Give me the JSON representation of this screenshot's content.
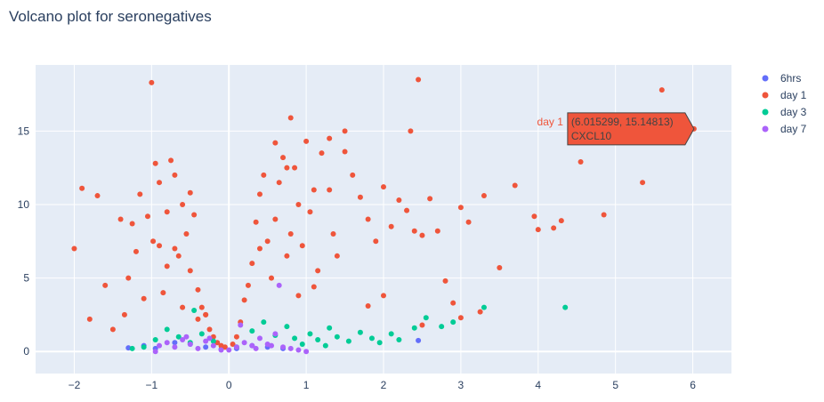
{
  "colors": {
    "plot_bg": "#E5ECF6",
    "grid": "#FFFFFF",
    "text": "#2a3f5f",
    "6hrs": "#636EFA",
    "day 1": "#EF553B",
    "day 3": "#00CC96",
    "day 7": "#AB63FA"
  },
  "chart_data": {
    "type": "scatter",
    "title": "Volcano plot for seronegatives",
    "xlabel": "",
    "ylabel": "",
    "xlim": [
      -2.5,
      6.5
    ],
    "ylim": [
      -1.5,
      19.5
    ],
    "xticks": [
      -2,
      -1,
      0,
      1,
      2,
      3,
      4,
      5,
      6
    ],
    "yticks": [
      0,
      5,
      10,
      15
    ],
    "grid": true,
    "legend_position": "top-right",
    "series": [
      {
        "name": "6hrs",
        "x": [
          -1.3,
          -1.1,
          -0.95,
          -0.7,
          -0.5,
          -0.3,
          -0.1,
          0.1,
          0.3,
          0.5,
          0.7,
          2.45
        ],
        "y": [
          0.25,
          0.4,
          0.2,
          0.6,
          0.5,
          0.3,
          0.15,
          0.2,
          0.4,
          0.3,
          0.2,
          0.75
        ]
      },
      {
        "name": "day 1",
        "x": [
          -2.0,
          -1.9,
          -1.8,
          -1.7,
          -1.6,
          -1.5,
          -1.4,
          -1.35,
          -1.3,
          -1.25,
          -1.2,
          -1.15,
          -1.1,
          -1.05,
          -1.0,
          -0.98,
          -0.95,
          -0.9,
          -0.85,
          -0.8,
          -0.75,
          -0.7,
          -0.65,
          -0.6,
          -0.55,
          -0.5,
          -0.45,
          -0.4,
          -0.35,
          -0.3,
          -0.25,
          -0.2,
          -0.15,
          -0.1,
          -0.05,
          0.05,
          0.1,
          0.15,
          0.2,
          0.25,
          0.3,
          0.35,
          0.4,
          0.45,
          0.5,
          0.55,
          0.6,
          0.65,
          0.7,
          0.75,
          0.8,
          0.85,
          0.9,
          0.95,
          1.0,
          1.05,
          1.1,
          1.15,
          1.2,
          1.3,
          1.35,
          1.4,
          1.5,
          1.6,
          1.7,
          1.8,
          1.9,
          2.0,
          2.1,
          2.2,
          2.3,
          2.4,
          2.45,
          2.5,
          2.6,
          2.7,
          2.8,
          2.9,
          3.0,
          3.1,
          3.3,
          3.5,
          3.7,
          3.95,
          4.0,
          4.2,
          4.3,
          4.55,
          4.85,
          5.35,
          5.6,
          6.015299,
          0.8,
          1.5,
          2.35,
          0.75,
          1.3,
          0.6,
          -0.6,
          -0.4,
          -0.8,
          -0.9,
          -0.5,
          -0.7,
          -0.3,
          0.4,
          0.9,
          1.1,
          1.8,
          2.0,
          2.5,
          3.25,
          3.0
        ],
        "y": [
          7.0,
          11.1,
          2.2,
          10.6,
          4.5,
          1.5,
          9.0,
          2.5,
          5.0,
          8.7,
          6.8,
          10.7,
          3.6,
          9.2,
          18.3,
          7.5,
          12.8,
          11.5,
          4.0,
          9.5,
          13.0,
          7.0,
          6.5,
          10.0,
          8.0,
          5.5,
          9.3,
          4.2,
          3.0,
          2.5,
          1.5,
          1.0,
          0.6,
          0.4,
          0.3,
          0.5,
          1.0,
          2.0,
          3.5,
          4.5,
          6.0,
          8.8,
          10.7,
          12.0,
          7.5,
          5.0,
          9.0,
          11.5,
          13.2,
          6.5,
          8.0,
          12.5,
          10.0,
          7.2,
          14.3,
          9.5,
          11.0,
          5.5,
          13.5,
          14.5,
          8.0,
          6.5,
          15.0,
          12.0,
          10.5,
          9.0,
          7.5,
          11.2,
          8.5,
          10.3,
          9.6,
          8.2,
          18.5,
          7.9,
          10.4,
          8.2,
          4.8,
          3.3,
          9.8,
          8.8,
          10.6,
          5.7,
          11.3,
          9.2,
          8.3,
          8.4,
          8.9,
          12.9,
          9.3,
          11.5,
          17.8,
          15.14813,
          15.9,
          13.6,
          15.0,
          12.5,
          11.0,
          14.2,
          3.0,
          2.2,
          5.8,
          7.2,
          10.8,
          12.0,
          2.5,
          7.0,
          3.8,
          4.4,
          3.1,
          3.8,
          1.8,
          2.7,
          2.3
        ]
      },
      {
        "name": "day 3",
        "x": [
          -1.25,
          -1.1,
          -0.95,
          -0.8,
          -0.65,
          -0.5,
          -0.45,
          -0.35,
          -0.2,
          0.1,
          0.3,
          0.45,
          0.6,
          0.75,
          0.85,
          0.95,
          1.05,
          1.15,
          1.25,
          1.3,
          1.4,
          1.55,
          1.7,
          1.85,
          1.95,
          2.1,
          2.2,
          2.4,
          2.55,
          2.75,
          2.9,
          3.3,
          4.35
        ],
        "y": [
          0.2,
          0.3,
          0.8,
          1.5,
          1.0,
          0.6,
          2.8,
          1.2,
          0.7,
          0.3,
          1.4,
          2.0,
          1.1,
          1.7,
          0.9,
          0.5,
          1.2,
          0.8,
          0.4,
          1.6,
          1.0,
          0.7,
          1.3,
          0.9,
          0.6,
          1.2,
          0.8,
          1.6,
          2.3,
          1.7,
          2.0,
          3.0,
          3.0
        ]
      },
      {
        "name": "day 7",
        "x": [
          -0.95,
          -0.9,
          -0.8,
          -0.7,
          -0.6,
          -0.5,
          -0.4,
          -0.3,
          -0.2,
          -0.1,
          0.0,
          0.1,
          0.2,
          0.3,
          0.4,
          0.5,
          0.6,
          0.65,
          0.7,
          0.8,
          0.9,
          1.0,
          0.15,
          0.35,
          0.55,
          -0.55,
          -0.25
        ],
        "y": [
          0.0,
          0.4,
          0.6,
          0.3,
          0.8,
          0.5,
          0.2,
          0.7,
          0.4,
          0.1,
          0.1,
          0.3,
          0.6,
          0.4,
          0.9,
          0.5,
          1.2,
          4.5,
          0.3,
          0.2,
          0.1,
          0.0,
          1.8,
          0.2,
          0.4,
          1.0,
          0.9
        ]
      }
    ],
    "hover": {
      "series": "day 1",
      "point": "(6.015299, 15.14813)",
      "label": "CXCL10",
      "x": 6.015299,
      "y": 15.14813
    }
  }
}
